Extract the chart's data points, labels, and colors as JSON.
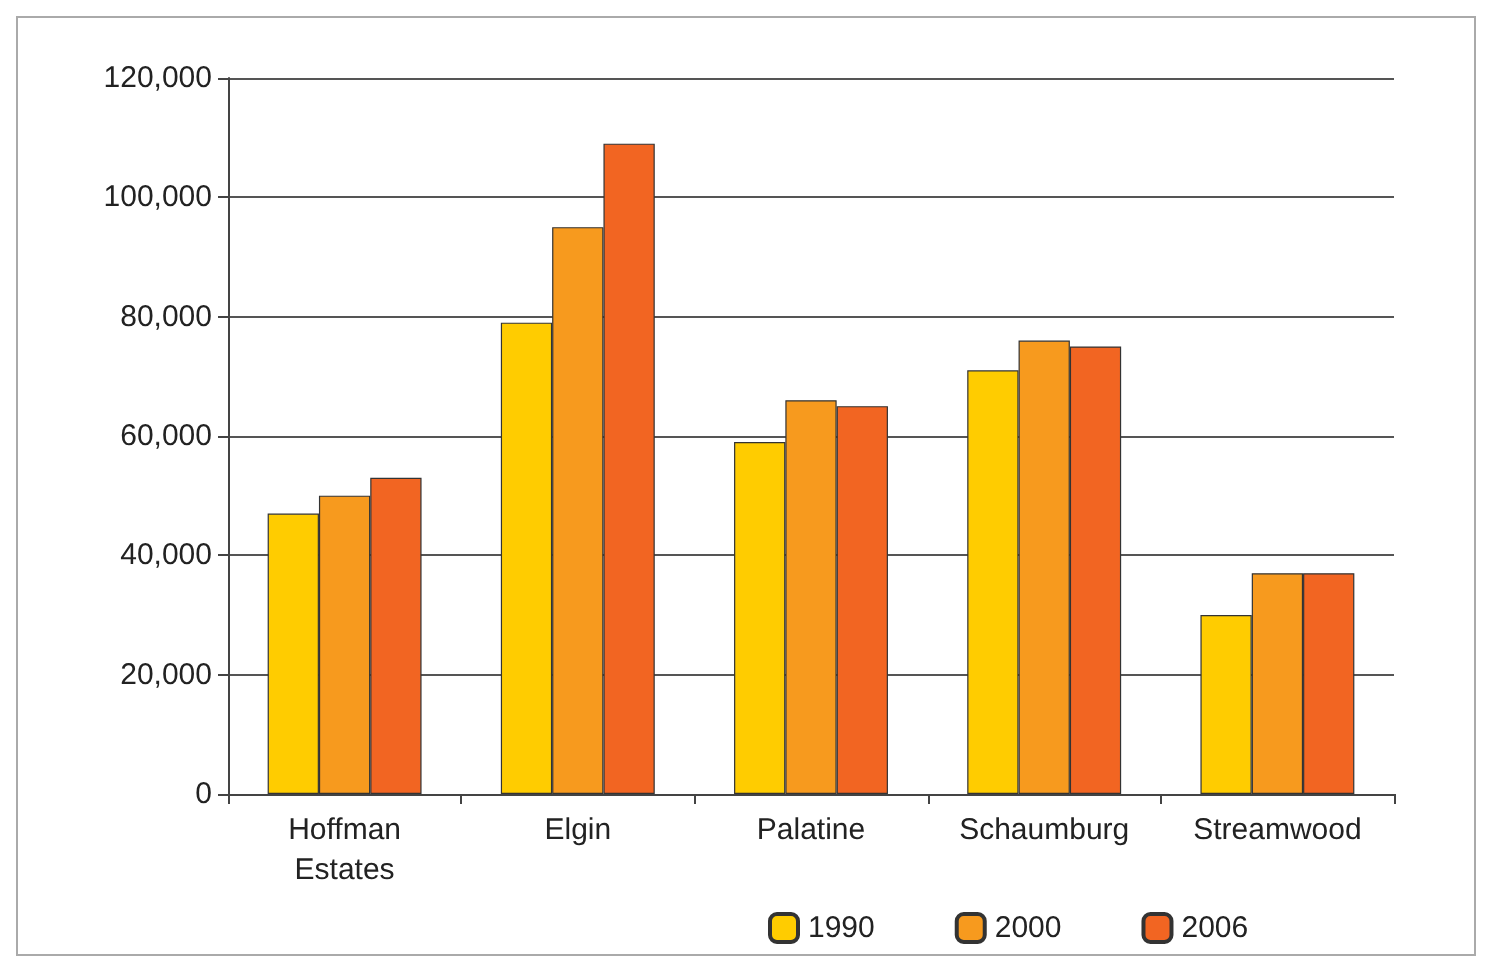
{
  "chart_data": {
    "type": "bar",
    "categories": [
      "Hoffman\nEstates",
      "Elgin",
      "Palatine",
      "Schaumburg",
      "Streamwood"
    ],
    "series": [
      {
        "name": "1990",
        "color": "#ffcc00",
        "values": [
          47000,
          79000,
          59000,
          71000,
          30000
        ]
      },
      {
        "name": "2000",
        "color": "#f79a1e",
        "values": [
          50000,
          95000,
          66000,
          76000,
          37000
        ]
      },
      {
        "name": "2006",
        "color": "#f26522",
        "values": [
          53000,
          109000,
          65000,
          75000,
          37000
        ]
      }
    ],
    "ylim": [
      0,
      120000
    ],
    "yticks": [
      0,
      {
        "value": 20000,
        "label": "20,000"
      },
      {
        "value": 40000,
        "label": "40,000"
      },
      {
        "value": 60000,
        "label": "60,000"
      },
      {
        "value": 80000,
        "label": "80,000"
      },
      {
        "value": 100000,
        "label": "100,000"
      },
      {
        "value": 120000,
        "label": "120,000"
      }
    ],
    "grid": "y",
    "legend": "bottom"
  }
}
